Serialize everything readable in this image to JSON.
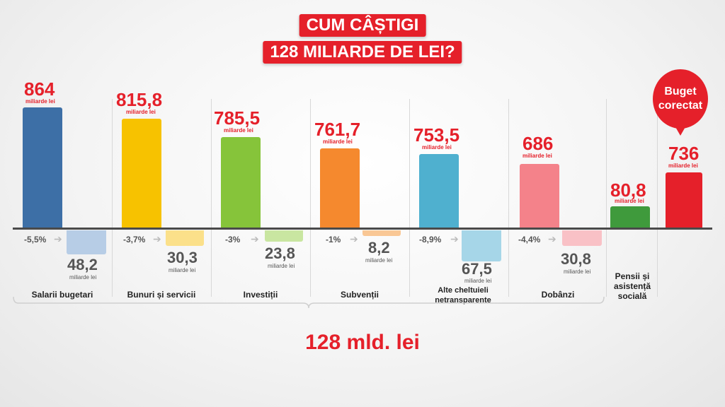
{
  "title": {
    "line1": "CUM CÂȘTIGI",
    "line2": "128 MILIARDE DE LEI?"
  },
  "total_label": "128 mld. lei",
  "bubble_label": "Buget corectat",
  "colors": {
    "accent": "#e5202a",
    "axis": "#4a4a4a"
  },
  "chart_data": {
    "type": "bar",
    "unit": "miliarde lei",
    "categories": [
      "Salarii bugetari",
      "Bunuri și servicii",
      "Investiții",
      "Subvenții",
      "Alte cheltuieli netransparente",
      "Dobânzi",
      "Pensii și asistență socială",
      ""
    ],
    "values": [
      {
        "value": "864",
        "unit": "miliarde lei",
        "color": "#3d6fa6",
        "change": "-5,5%",
        "cut": "48,2",
        "cut_unit": "miliarde lei",
        "cut_color": "#b7cde6"
      },
      {
        "value": "815,8",
        "unit": "miliarde lei",
        "color": "#f7c200",
        "change": "-3,7%",
        "cut": "30,3",
        "cut_unit": "miliarde lei",
        "cut_color": "#fbe08a"
      },
      {
        "value": "785,5",
        "unit": "miliarde lei",
        "color": "#86c43a",
        "change": "-3%",
        "cut": "23,8",
        "cut_unit": "miliarde lei",
        "cut_color": "#c9e6a1"
      },
      {
        "value": "761,7",
        "unit": "miliarde lei",
        "color": "#f5892e",
        "change": "-1%",
        "cut": "8,2",
        "cut_unit": "miliarde lei",
        "cut_color": "#f9c795"
      },
      {
        "value": "753,5",
        "unit": "miliarde lei",
        "color": "#4fb0cf",
        "change": "-8,9%",
        "cut": "67,5",
        "cut_unit": "miliarde lei",
        "cut_color": "#a6d6e8"
      },
      {
        "value": "686",
        "unit": "miliarde lei",
        "color": "#f4828a",
        "change": "-4,4%",
        "cut": "30,8",
        "cut_unit": "miliarde lei",
        "cut_color": "#f9c1c6"
      },
      {
        "value": "80,8",
        "unit": "miliarde lei",
        "color": "#3f9a3c"
      },
      {
        "value": "736",
        "unit": "miliarde lei",
        "color": "#e5202a"
      }
    ],
    "numeric_values": [
      864,
      815.8,
      785.5,
      761.7,
      753.5,
      686,
      80.8,
      736
    ],
    "reductions": [
      48.2,
      30.3,
      23.8,
      8.2,
      67.5,
      30.8
    ]
  }
}
